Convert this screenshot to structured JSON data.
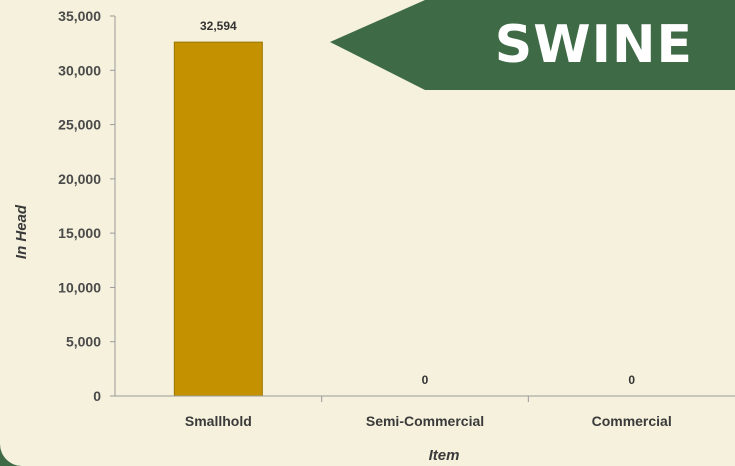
{
  "banner": {
    "label": "SWINE"
  },
  "colors": {
    "bar": "#c49200",
    "bar_border": "#9c7400",
    "background": "#f5f1dc",
    "accent": "#3e6b46"
  },
  "chart_data": {
    "type": "bar",
    "categories": [
      "Smallhold",
      "Semi-Commercial",
      "Commercial"
    ],
    "values": [
      32594,
      0,
      0
    ],
    "data_labels": [
      "32,594",
      "0",
      "0"
    ],
    "xlabel": "Item",
    "ylabel": "In Head",
    "ylim": [
      0,
      35000
    ],
    "yticks": [
      0,
      5000,
      10000,
      15000,
      20000,
      25000,
      30000,
      35000
    ],
    "ytick_labels": [
      "0",
      "5,000",
      "10,000",
      "15,000",
      "20,000",
      "25,000",
      "30,000",
      "35,000"
    ],
    "grid": false,
    "legend": "none"
  }
}
